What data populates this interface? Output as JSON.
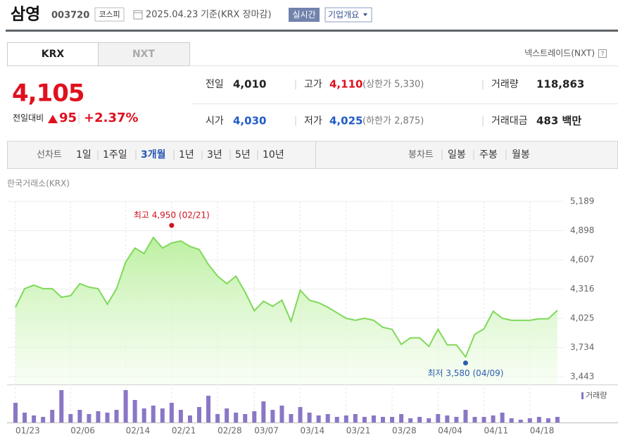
{
  "header": {
    "name": "삼영",
    "code": "003720",
    "market": "코스피",
    "date": "2025.04.23",
    "basis": "기준(KRX 장마감)",
    "realtime": "실시간",
    "company": "기업개요"
  },
  "tabs": [
    "KRX",
    "NXT"
  ],
  "nxt_link": "넥스트레이드(NXT)",
  "price": {
    "current": "4,105",
    "change_label": "전일대비",
    "change": "95",
    "rate": "+2.37%"
  },
  "stats": [
    [
      {
        "label": "전일",
        "value": "4,010",
        "color": "#222222"
      },
      {
        "label": "고가",
        "value": "4,110",
        "color": "#e0101e",
        "sub": "(상한가 5,330)"
      },
      {
        "label": "거래량",
        "value": "118,863",
        "color": "#222222"
      }
    ],
    [
      {
        "label": "시가",
        "value": "4,030",
        "color": "#1f5bc6"
      },
      {
        "label": "저가",
        "value": "4,025",
        "color": "#1f5bc6",
        "sub": "(하한가 2,875)"
      },
      {
        "label": "거래대금",
        "value": "483 백만",
        "color": "#222222"
      }
    ]
  ],
  "periods": {
    "label": "선차트",
    "items": [
      "1일",
      "1주일",
      "3개월",
      "1년",
      "3년",
      "5년",
      "10년"
    ],
    "selected": "3개월"
  },
  "candles": {
    "label": "봉차트",
    "items": [
      "일봉",
      "주봉",
      "월봉"
    ]
  },
  "chart_data": {
    "type": "line",
    "source": "한국거래소(KRX)",
    "categories": [
      "01/23",
      null,
      null,
      null,
      null,
      null,
      "02/06",
      null,
      null,
      null,
      null,
      null,
      "02/14",
      null,
      null,
      null,
      null,
      "02/21",
      null,
      null,
      null,
      null,
      "02/28",
      null,
      null,
      null,
      "03/07",
      null,
      null,
      null,
      null,
      "03/14",
      null,
      null,
      null,
      null,
      "03/21",
      null,
      null,
      null,
      null,
      "03/28",
      null,
      null,
      null,
      null,
      "04/04",
      null,
      null,
      null,
      null,
      "04/11",
      null,
      null,
      null,
      null,
      "04/18",
      null,
      null,
      null
    ],
    "values": [
      4135,
      4320,
      4355,
      4320,
      4320,
      4235,
      4250,
      4370,
      4335,
      4320,
      4165,
      4320,
      4585,
      4725,
      4670,
      4830,
      4725,
      4775,
      4795,
      4740,
      4710,
      4560,
      4445,
      4370,
      4445,
      4285,
      4100,
      4195,
      4145,
      4205,
      3995,
      4305,
      4205,
      4180,
      4135,
      4080,
      4025,
      4005,
      4025,
      4005,
      3935,
      3915,
      3765,
      3830,
      3830,
      3745,
      3915,
      3760,
      3760,
      3640,
      3865,
      3920,
      4095,
      4025,
      4005,
      4005,
      4005,
      4020,
      4020,
      4105
    ],
    "color": "#7fd95a",
    "volume": {
      "name": "거래량",
      "color": "#8b76c6",
      "values": [
        416000,
        208000,
        149000,
        119000,
        267000,
        683000,
        178000,
        267000,
        178000,
        238000,
        208000,
        267000,
        683000,
        475000,
        297000,
        357000,
        297000,
        416000,
        267000,
        149000,
        327000,
        565000,
        178000,
        297000,
        208000,
        178000,
        238000,
        446000,
        267000,
        357000,
        178000,
        327000,
        208000,
        149000,
        178000,
        119000,
        149000,
        178000,
        119000,
        149000,
        119000,
        119000,
        178000,
        89000,
        119000,
        89000,
        178000,
        149000,
        119000,
        267000,
        119000,
        119000,
        149000,
        208000,
        89000,
        59000,
        89000,
        119000,
        89000,
        118863
      ]
    },
    "ylim": [
      3443,
      5189
    ],
    "yticks": [
      {
        "value": 3443,
        "label": "3,443"
      },
      {
        "value": 3734,
        "label": "3,734"
      },
      {
        "value": 4025,
        "label": "4,025"
      },
      {
        "value": 4316,
        "label": "4,316"
      },
      {
        "value": 4607,
        "label": "4,607"
      },
      {
        "value": 4898,
        "label": "4,898"
      },
      {
        "value": 5189,
        "label": "5,189"
      }
    ],
    "grid": true,
    "annotations": [
      {
        "text": "최고 4,950 (02/21)",
        "value": 4950,
        "index": 17,
        "color": "#d0101e"
      },
      {
        "text": "최저 3,580 (04/09)",
        "value": 3580,
        "index": 49,
        "color": "#2a5db0"
      }
    ]
  }
}
